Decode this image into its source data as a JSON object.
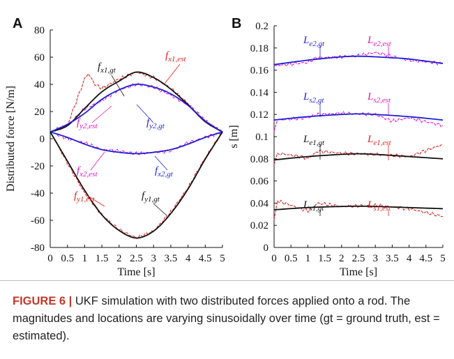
{
  "figure": {
    "caption_label": "FIGURE 6 |",
    "caption_text": " UKF simulation with two distributed forces applied onto a rod. The magnitudes and locations are varying sinusoidally over time (gt = ground truth, est = estimated)."
  },
  "chart_data": [
    {
      "panel": "A",
      "type": "line",
      "xlabel": "Time [s]",
      "ylabel": "Distributed force [N/m]",
      "xlim": [
        0,
        5
      ],
      "ylim": [
        -80,
        80
      ],
      "xticks": [
        "0",
        "0.5",
        "1",
        "1.5",
        "2",
        "2.5",
        "3",
        "3.5",
        "4",
        "4.5",
        "5"
      ],
      "yticks": [
        "80",
        "60",
        "40",
        "20",
        "0",
        "-20",
        "-40",
        "-60",
        "-80"
      ],
      "grid": false,
      "series": [
        {
          "name": "f_x1,gt",
          "color": "#111111",
          "style": "solid",
          "x": [
            0,
            0.5,
            1,
            1.5,
            2,
            2.5,
            3,
            3.5,
            4,
            4.5,
            5
          ],
          "values": [
            5,
            9.6,
            22.3,
            34.5,
            42.4,
            49,
            45,
            36.5,
            25,
            12.5,
            5
          ]
        },
        {
          "name": "f_x1,est",
          "color": "#e02020",
          "style": "noisy",
          "x": [
            0,
            0.5,
            1,
            1.1,
            1.3,
            1.5,
            2,
            2.5,
            3,
            3.5,
            4,
            4.5,
            5
          ],
          "values": [
            5,
            10,
            44,
            48,
            40,
            37,
            44,
            49,
            45,
            37,
            26,
            13,
            5
          ]
        },
        {
          "name": "f_y2,gt",
          "color": "#1f1fd6",
          "style": "solid",
          "x": [
            0,
            0.5,
            1,
            1.5,
            2,
            2.5,
            3,
            3.5,
            4,
            4.5,
            5
          ],
          "values": [
            5,
            10.6,
            18.7,
            29,
            36,
            40,
            38,
            33,
            24.5,
            13,
            5
          ]
        },
        {
          "name": "f_y2,est",
          "color": "#e010c0",
          "style": "noisy",
          "x": [
            0,
            0.5,
            1,
            1.5,
            2,
            2.5,
            3,
            3.5,
            4,
            4.5,
            5
          ],
          "values": [
            5,
            10,
            22,
            28,
            36,
            40,
            38,
            32,
            25,
            13,
            5
          ]
        },
        {
          "name": "f_x2,gt",
          "color": "#1f1fd6",
          "style": "solid",
          "x": [
            0,
            0.5,
            1,
            1.5,
            2,
            2.5,
            3,
            3.5,
            4,
            4.5,
            5
          ],
          "values": [
            5,
            1,
            -4,
            -8,
            -10,
            -11,
            -10,
            -8,
            -4,
            1,
            5
          ]
        },
        {
          "name": "f_x2,est",
          "color": "#e010c0",
          "style": "noisy",
          "x": [
            0,
            0.5,
            1,
            1.5,
            2,
            2.5,
            3,
            3.5,
            4,
            4.5,
            5
          ],
          "values": [
            5,
            0,
            -3,
            -8,
            -9,
            -11,
            -10,
            -9,
            -3,
            1,
            5
          ]
        },
        {
          "name": "f_y1,gt",
          "color": "#111111",
          "style": "solid",
          "x": [
            0,
            0.5,
            1,
            1.5,
            2,
            2.5,
            3,
            3.5,
            4,
            4.5,
            5
          ],
          "values": [
            5,
            -16.5,
            -38,
            -56,
            -67.5,
            -73,
            -68,
            -55,
            -37,
            -15,
            5
          ]
        },
        {
          "name": "f_y1,est",
          "color": "#e02020",
          "style": "noisy",
          "x": [
            0,
            0.5,
            1,
            1.5,
            2,
            2.5,
            3,
            3.5,
            4,
            4.5,
            5
          ],
          "values": [
            5,
            -18,
            -40,
            -56,
            -67,
            -73,
            -68,
            -54,
            -36,
            -14,
            5
          ]
        }
      ],
      "annotations": [
        {
          "text": "f",
          "sub": "x1,gt",
          "color": "#111111"
        },
        {
          "text": "f",
          "sub": "x1,est",
          "color": "#e02020"
        },
        {
          "text": "f",
          "sub": "y2,est",
          "color": "#e010c0"
        },
        {
          "text": "f",
          "sub": "y2,gt",
          "color": "#1f1fd6"
        },
        {
          "text": "f",
          "sub": "x2,est",
          "color": "#e010c0"
        },
        {
          "text": "f",
          "sub": "x2,gt",
          "color": "#1f1fd6"
        },
        {
          "text": "f",
          "sub": "y1,est",
          "color": "#e02020"
        },
        {
          "text": "f",
          "sub": "y1,gt",
          "color": "#111111"
        }
      ]
    },
    {
      "panel": "B",
      "type": "line",
      "xlabel": "Time [s]",
      "ylabel": "s [m]",
      "xlim": [
        0,
        5
      ],
      "ylim": [
        0,
        0.2
      ],
      "xticks": [
        "0",
        "0.5",
        "1",
        "1.5",
        "2",
        "2.5",
        "3",
        "3.5",
        "4",
        "4.5",
        "5"
      ],
      "yticks": [
        "0.2",
        "0.18",
        "0.16",
        "0.14",
        "0.12",
        "0.1",
        "0.08",
        "0.06",
        "0.04",
        "0.02",
        "0"
      ],
      "grid": false,
      "series": [
        {
          "name": "L_e2,gt",
          "color": "#1f1fd6",
          "style": "solid",
          "x": [
            0,
            1,
            2,
            2.5,
            3,
            4,
            5
          ],
          "values": [
            0.165,
            0.169,
            0.172,
            0.1725,
            0.172,
            0.17,
            0.166
          ]
        },
        {
          "name": "L_e2,est",
          "color": "#e010c0",
          "style": "noisy",
          "x": [
            0,
            1,
            1.25,
            2,
            2.5,
            3,
            4,
            5
          ],
          "values": [
            0.164,
            0.167,
            0.171,
            0.172,
            0.173,
            0.176,
            0.169,
            0.166
          ]
        },
        {
          "name": "L_s2,gt",
          "color": "#1f1fd6",
          "style": "solid",
          "x": [
            0,
            1,
            2,
            2.5,
            3,
            4,
            5
          ],
          "values": [
            0.115,
            0.118,
            0.12,
            0.1205,
            0.12,
            0.118,
            0.115
          ]
        },
        {
          "name": "L_s2,est",
          "color": "#e010c0",
          "style": "noisy",
          "x": [
            0,
            0.1,
            1,
            1.25,
            2,
            3,
            3.5,
            4,
            5
          ],
          "values": [
            0.105,
            0.115,
            0.117,
            0.12,
            0.121,
            0.12,
            0.114,
            0.117,
            0.11
          ]
        },
        {
          "name": "L_e1,gt",
          "color": "#111111",
          "style": "solid",
          "x": [
            0,
            1,
            2,
            2.5,
            3,
            4,
            5
          ],
          "values": [
            0.079,
            0.082,
            0.084,
            0.0845,
            0.084,
            0.082,
            0.08
          ]
        },
        {
          "name": "L_e1,est",
          "color": "#e02020",
          "style": "noisy",
          "x": [
            0,
            0.1,
            0.8,
            1,
            1.3,
            2,
            3,
            4,
            5
          ],
          "values": [
            0.075,
            0.085,
            0.082,
            0.08,
            0.087,
            0.085,
            0.084,
            0.082,
            0.093
          ]
        },
        {
          "name": "L_s1,gt",
          "color": "#111111",
          "style": "solid",
          "x": [
            0,
            1,
            2,
            2.5,
            3,
            4,
            5
          ],
          "values": [
            0.034,
            0.036,
            0.037,
            0.0372,
            0.037,
            0.036,
            0.035
          ]
        },
        {
          "name": "L_s1,est",
          "color": "#e02020",
          "style": "noisy",
          "x": [
            0,
            0.1,
            0.5,
            1,
            1.3,
            2,
            3,
            4,
            5
          ],
          "values": [
            0.025,
            0.042,
            0.038,
            0.033,
            0.04,
            0.037,
            0.038,
            0.035,
            0.028
          ]
        }
      ],
      "annotations": [
        {
          "text": "L",
          "sub": "e2,gt",
          "color": "#1f1fd6"
        },
        {
          "text": "L",
          "sub": "e2,est",
          "color": "#e010c0"
        },
        {
          "text": "L",
          "sub": "s2,gt",
          "color": "#1f1fd6"
        },
        {
          "text": "L",
          "sub": "s2,est",
          "color": "#e010c0"
        },
        {
          "text": "L",
          "sub": "e1,gt",
          "color": "#111111"
        },
        {
          "text": "L",
          "sub": "e1,est",
          "color": "#e02020"
        },
        {
          "text": "L",
          "sub": "s1,gt",
          "color": "#111111"
        },
        {
          "text": "L",
          "sub": "s1,est",
          "color": "#e02020"
        }
      ]
    }
  ]
}
